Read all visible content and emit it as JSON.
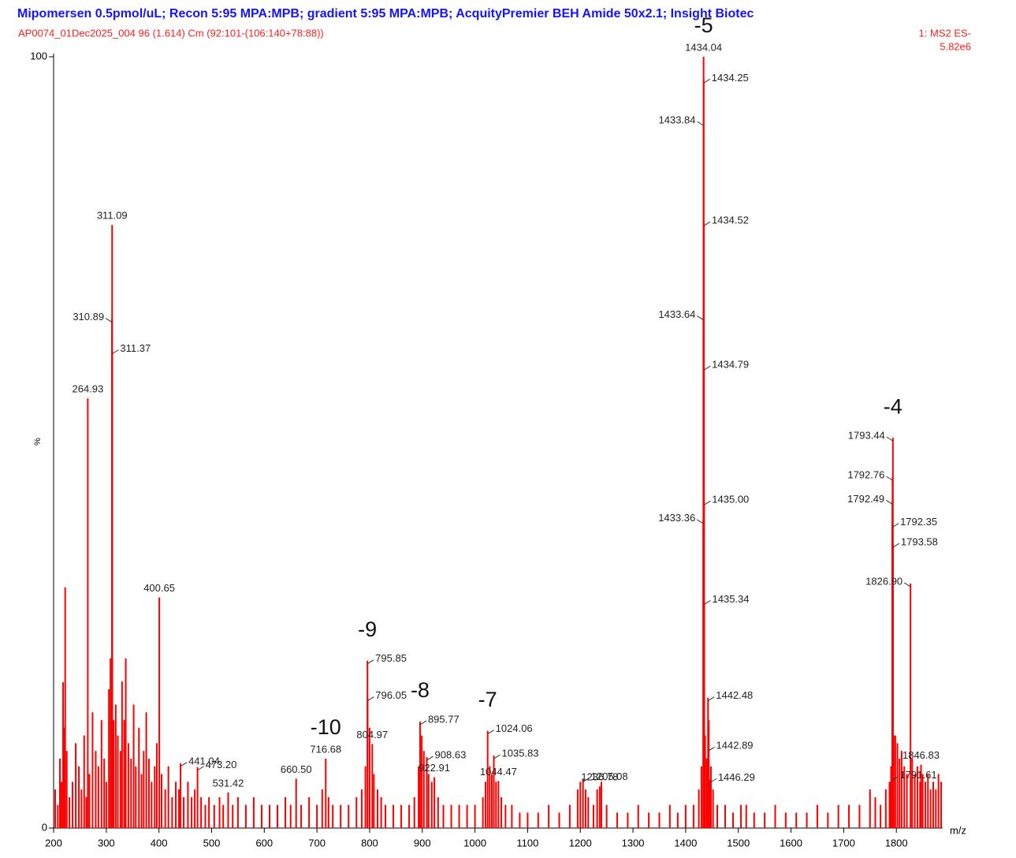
{
  "chart_data": {
    "type": "spectrum",
    "title": "Mipomersen 0.5pmol/uL; Recon 5:95 MPA:MPB; gradient 5:95 MPA:MPB; AcquityPremier BEH Amide 50x2.1; Insight Biotec",
    "subtitle": "AP0074_01Dec2025_004 96 (1.614) Cm (92:101-(106:140+78:88))",
    "scan": "1: MS2 ES-",
    "base_peak_intensity": "5.82e6",
    "xlabel": "m/z",
    "ylabel": "%",
    "xlim": [
      200,
      1888
    ],
    "ylim": [
      0,
      100
    ],
    "xticks": [
      200,
      300,
      400,
      500,
      600,
      700,
      800,
      900,
      1000,
      1100,
      1200,
      1300,
      1400,
      1500,
      1600,
      1700,
      1800
    ],
    "yticks": [
      0,
      100
    ],
    "series": [
      {
        "name": "labeled peaks",
        "color": "#ff0000",
        "x": [
          1434.04,
          1434.25,
          1433.84,
          1434.52,
          1433.64,
          1434.79,
          1435.0,
          1433.36,
          1435.34,
          1442.48,
          1442.89,
          1446.29,
          311.09,
          310.89,
          311.37,
          264.93,
          400.65,
          441.04,
          473.2,
          531.42,
          660.5,
          716.68,
          795.85,
          796.05,
          804.97,
          895.77,
          908.63,
          922.91,
          1024.06,
          1035.83,
          1044.47,
          1205.08,
          1236.78,
          1793.44,
          1792.76,
          1792.49,
          1792.35,
          1793.58,
          1826.9,
          1791.61,
          1846.83
        ],
        "values": [
          100,
          97,
          91.5,
          78.5,
          66.3,
          59.8,
          42.3,
          39.9,
          29.4,
          16.9,
          10.4,
          6.3,
          78.2,
          66,
          61.9,
          55.7,
          29.9,
          8.4,
          7.9,
          4.6,
          6.4,
          9,
          21.7,
          16.9,
          10.9,
          13.8,
          9.2,
          6.6,
          12.6,
          9.4,
          6.1,
          6.4,
          5.4,
          50.6,
          45.5,
          42.4,
          39.4,
          36.8,
          31.7,
          6.6,
          8.2
        ],
        "value_labels": [
          "1434.04",
          "1434.25",
          "1433.84",
          "1434.52",
          "1433.64",
          "1434.79",
          "1435.00",
          "1433.36",
          "1435.34",
          "1442.48",
          "1442.89",
          "1446.29",
          "311.09",
          "310.89",
          "311.37",
          "264.93",
          "400.65",
          "441.04",
          "473.20",
          "531.42",
          "660.50",
          "716.68",
          "795.85",
          "796.05",
          "804.97",
          "895.77",
          "908.63",
          "922.91",
          "1024.06",
          "1035.83",
          "1044.47",
          "1205.08",
          "1236.78",
          "1793.44",
          "1792.76",
          "1792.49",
          "1792.35",
          "1793.58",
          "1826.90",
          "1791.61",
          "1846.83"
        ]
      },
      {
        "name": "background peaks",
        "color": "#ff0000",
        "x": [
          203,
          208,
          212,
          215,
          218,
          220,
          222,
          225,
          230,
          236,
          242,
          248,
          253,
          258,
          262,
          268,
          274,
          280,
          285,
          291,
          296,
          300,
          305,
          308,
          314,
          318,
          322,
          327,
          330,
          334,
          337,
          342,
          347,
          352,
          356,
          362,
          367,
          371,
          376,
          381,
          386,
          392,
          396,
          405,
          412,
          418,
          425,
          432,
          438,
          447,
          455,
          462,
          468,
          480,
          488,
          495,
          505,
          515,
          522,
          540,
          550,
          565,
          580,
          595,
          610,
          625,
          640,
          650,
          670,
          685,
          700,
          710,
          722,
          730,
          745,
          760,
          775,
          785,
          792,
          800,
          808,
          815,
          822,
          830,
          845,
          860,
          875,
          885,
          893,
          899,
          903,
          912,
          918,
          930,
          940,
          955,
          970,
          985,
          1000,
          1015,
          1020,
          1028,
          1032,
          1040,
          1050,
          1058,
          1070,
          1085,
          1100,
          1120,
          1140,
          1160,
          1180,
          1195,
          1200,
          1210,
          1215,
          1225,
          1232,
          1240,
          1250,
          1270,
          1290,
          1310,
          1330,
          1350,
          1370,
          1385,
          1400,
          1415,
          1425,
          1430,
          1437,
          1440,
          1444,
          1448,
          1452,
          1460,
          1475,
          1490,
          1505,
          1515,
          1530,
          1550,
          1570,
          1590,
          1610,
          1630,
          1650,
          1670,
          1690,
          1710,
          1730,
          1750,
          1760,
          1770,
          1780,
          1787,
          1790,
          1795,
          1798,
          1802,
          1806,
          1810,
          1815,
          1820,
          1830,
          1835,
          1840,
          1845,
          1850,
          1855,
          1860,
          1865,
          1870,
          1875,
          1880,
          1885
        ],
        "values": [
          5,
          3,
          9,
          6,
          18.9,
          13,
          31.2,
          10,
          4,
          6,
          11,
          8,
          5,
          12,
          4,
          7,
          15,
          10,
          8,
          14,
          9,
          6,
          18,
          22,
          14,
          16,
          12,
          10,
          19,
          14,
          22,
          11,
          9,
          16,
          8,
          13,
          7,
          10,
          15,
          9,
          6,
          8,
          11,
          7,
          5,
          8,
          4,
          6,
          5,
          4,
          6,
          4,
          5,
          4,
          3,
          4,
          3,
          4,
          3,
          3,
          4,
          3,
          4,
          3,
          3,
          3,
          4,
          3,
          3,
          4,
          3,
          5,
          4,
          3,
          3,
          3,
          4,
          5,
          8,
          13,
          7,
          5,
          4,
          3,
          3,
          3,
          3,
          4,
          8,
          12,
          10,
          7,
          6,
          4,
          3,
          3,
          3,
          3,
          3,
          4,
          6,
          8,
          7,
          6,
          4,
          3,
          3,
          2,
          2,
          2,
          3,
          2,
          3,
          5,
          6,
          5,
          4,
          3,
          5,
          6,
          3,
          2,
          2,
          3,
          2,
          2,
          3,
          2,
          3,
          3,
          5,
          8,
          12,
          9,
          14,
          8,
          5,
          3,
          3,
          2,
          3,
          3,
          2,
          2,
          3,
          2,
          2,
          2,
          3,
          2,
          3,
          3,
          3,
          5,
          4,
          3,
          5,
          6,
          8,
          12,
          12,
          11,
          9,
          10,
          8,
          7,
          9,
          7,
          8,
          6,
          7,
          6,
          7,
          5,
          6,
          5,
          7,
          6
        ]
      }
    ],
    "annotations": [
      {
        "text": "-5",
        "x": 1434.04
      },
      {
        "text": "-4",
        "x": 1793.44
      },
      {
        "text": "-9",
        "x": 795.85
      },
      {
        "text": "-10",
        "x": 716.68
      },
      {
        "text": "-8",
        "x": 895.77
      },
      {
        "text": "-7",
        "x": 1024.06
      }
    ]
  }
}
